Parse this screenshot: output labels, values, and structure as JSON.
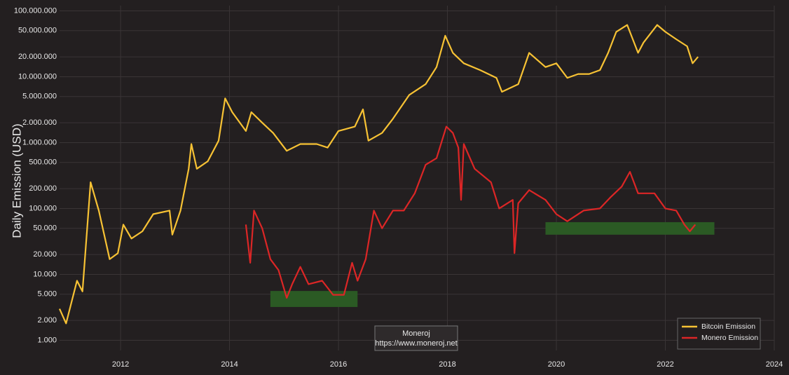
{
  "chart_data": {
    "type": "line",
    "y_label": "Daily Emission (USD)",
    "annotation": [
      "Moneroj",
      "https://www.moneroj.net"
    ],
    "log_y": true,
    "grid": true,
    "legend": "lower right",
    "xlim": [
      2010.88,
      2024
    ],
    "xticks": [
      2012,
      2014,
      2016,
      2018,
      2020,
      2022,
      2024
    ],
    "ylim": [
      700,
      120000000
    ],
    "yticks": [
      {
        "value": 1000,
        "label": "1.000"
      },
      {
        "value": 2000,
        "label": "2.000"
      },
      {
        "value": 5000,
        "label": "5.000"
      },
      {
        "value": 10000,
        "label": "10.000"
      },
      {
        "value": 20000,
        "label": "20.000"
      },
      {
        "value": 50000,
        "label": "50.000"
      },
      {
        "value": 100000,
        "label": "100.000"
      },
      {
        "value": 200000,
        "label": "200.000"
      },
      {
        "value": 500000,
        "label": "500.000"
      },
      {
        "value": 1000000,
        "label": "1.000.000"
      },
      {
        "value": 2000000,
        "label": "2.000.000"
      },
      {
        "value": 5000000,
        "label": "5.000.000"
      },
      {
        "value": 10000000,
        "label": "10.000.000"
      },
      {
        "value": 20000000,
        "label": "20.000.000"
      },
      {
        "value": 50000000,
        "label": "50.000.000"
      },
      {
        "value": 100000000,
        "label": "100.000.000"
      }
    ],
    "highlights": [
      {
        "x": [
          2014.75,
          2016.35
        ],
        "y": [
          3200,
          5600
        ],
        "color": "#2b5a24"
      },
      {
        "x": [
          2019.8,
          2022.9
        ],
        "y": [
          40000,
          62000
        ],
        "color": "#2b5a24"
      }
    ],
    "series": [
      {
        "name": "Bitcoin Emission",
        "color": "#f7c234",
        "x": [
          2010.88,
          2011.0,
          2011.2,
          2011.3,
          2011.45,
          2011.6,
          2011.8,
          2011.95,
          2012.05,
          2012.2,
          2012.4,
          2012.6,
          2012.9,
          2012.95,
          2013.1,
          2013.25,
          2013.3,
          2013.4,
          2013.6,
          2013.8,
          2013.92,
          2014.05,
          2014.3,
          2014.4,
          2014.6,
          2014.8,
          2015.05,
          2015.3,
          2015.6,
          2015.8,
          2016.0,
          2016.3,
          2016.45,
          2016.55,
          2016.8,
          2017.0,
          2017.3,
          2017.6,
          2017.8,
          2017.96,
          2018.1,
          2018.3,
          2018.6,
          2018.9,
          2019.0,
          2019.3,
          2019.5,
          2019.8,
          2020.0,
          2020.2,
          2020.4,
          2020.6,
          2020.8,
          2020.95,
          2021.1,
          2021.3,
          2021.5,
          2021.6,
          2021.85,
          2022.0,
          2022.2,
          2022.4,
          2022.5,
          2022.6
        ],
        "values": [
          3000,
          1800,
          8000,
          5500,
          250000,
          93000,
          17000,
          21000,
          57000,
          35000,
          45000,
          82000,
          93000,
          40000,
          93000,
          400000,
          950000,
          400000,
          520000,
          1070000,
          4700000,
          2900000,
          1500000,
          2900000,
          2000000,
          1400000,
          750000,
          950000,
          950000,
          840000,
          1500000,
          1750000,
          3200000,
          1070000,
          1400000,
          2300000,
          5300000,
          7700000,
          14000000,
          42000000,
          23000000,
          16000000,
          12600000,
          9600000,
          5900000,
          7700000,
          23000000,
          14000000,
          16000000,
          9600000,
          11000000,
          11000000,
          12600000,
          23000000,
          48000000,
          61000000,
          23000000,
          33000000,
          61000000,
          48000000,
          37000000,
          29000000,
          16000000,
          20000000
        ]
      },
      {
        "name": "Monero Emission",
        "color": "#dc2626",
        "x": [
          2014.3,
          2014.38,
          2014.45,
          2014.6,
          2014.75,
          2014.9,
          2015.05,
          2015.15,
          2015.3,
          2015.45,
          2015.7,
          2015.9,
          2016.1,
          2016.25,
          2016.35,
          2016.5,
          2016.65,
          2016.8,
          2017.0,
          2017.2,
          2017.4,
          2017.6,
          2017.8,
          2017.98,
          2018.1,
          2018.2,
          2018.25,
          2018.3,
          2018.5,
          2018.8,
          2018.95,
          2019.2,
          2019.23,
          2019.3,
          2019.5,
          2019.8,
          2020.0,
          2020.2,
          2020.5,
          2020.8,
          2021.0,
          2021.2,
          2021.35,
          2021.5,
          2021.8,
          2022.0,
          2022.2,
          2022.35,
          2022.45,
          2022.55
        ],
        "values": [
          57000,
          15000,
          93000,
          50000,
          17000,
          11600,
          4400,
          7100,
          13000,
          7100,
          8000,
          4900,
          4900,
          15000,
          8000,
          17000,
          93000,
          50000,
          93000,
          93000,
          170000,
          460000,
          580000,
          1750000,
          1400000,
          840000,
          135000,
          950000,
          400000,
          250000,
          100000,
          135000,
          21000,
          120000,
          190000,
          135000,
          82000,
          64000,
          93000,
          100000,
          150000,
          215000,
          360000,
          170000,
          170000,
          100000,
          93000,
          57000,
          45000,
          57000
        ]
      }
    ]
  }
}
